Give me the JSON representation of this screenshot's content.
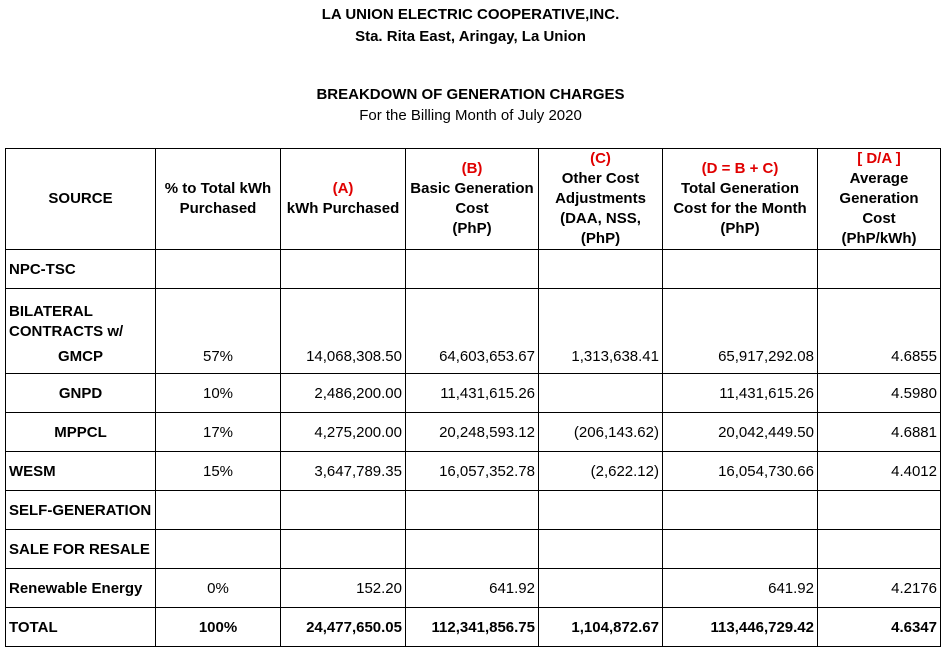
{
  "header": {
    "org": "LA UNION ELECTRIC COOPERATIVE,INC.",
    "address": "Sta. Rita East, Aringay, La Union",
    "title": "BREAKDOWN OF GENERATION CHARGES",
    "subtitle": "For the Billing Month of July 2020"
  },
  "table": {
    "columns": [
      {
        "label": "SOURCE"
      },
      {
        "label": "% to Total kWh Purchased"
      },
      {
        "code": "(A)",
        "label": "kWh Purchased"
      },
      {
        "code": "(B)",
        "label": "Basic Generation Cost",
        "unit": "(PhP)"
      },
      {
        "code": "(C)",
        "label": "Other Cost Adjustments (DAA, NSS,",
        "unit": "(PhP)"
      },
      {
        "code": "(D = B + C)",
        "label": "Total Generation Cost for the Month",
        "unit": "(PhP)"
      },
      {
        "code": "[ D/A ]",
        "label": "Average Generation Cost",
        "unit": "(PhP/kWh)"
      }
    ],
    "rows": [
      {
        "source": "NPC-TSC",
        "cells": [
          null,
          null,
          null,
          null,
          null,
          null
        ]
      },
      {
        "source": "BILATERAL CONTRACTS w/",
        "items": [
          {
            "source": "GMCP",
            "cells": [
              "57%",
              "14,068,308.50",
              "64,603,653.67",
              "1,313,638.41",
              "65,917,292.08",
              "4.6855"
            ]
          },
          {
            "source": "GNPD",
            "cells": [
              "10%",
              "2,486,200.00",
              "11,431,615.26",
              null,
              "11,431,615.26",
              "4.5980"
            ]
          },
          {
            "source": "MPPCL",
            "cells": [
              "17%",
              "4,275,200.00",
              "20,248,593.12",
              "(206,143.62)",
              "20,042,449.50",
              "4.6881"
            ]
          }
        ]
      },
      {
        "source": "WESM",
        "cells": [
          "15%",
          "3,647,789.35",
          "16,057,352.78",
          "(2,622.12)",
          "16,054,730.66",
          "4.4012"
        ]
      },
      {
        "source": "SELF-GENERATION",
        "cells": [
          null,
          null,
          null,
          null,
          null,
          null
        ]
      },
      {
        "source": "SALE FOR RESALE",
        "cells": [
          null,
          null,
          null,
          null,
          null,
          null
        ]
      },
      {
        "source": "Renewable Energy",
        "cells": [
          "0%",
          "152.20",
          "641.92",
          null,
          "641.92",
          "4.2176"
        ]
      }
    ],
    "total": {
      "source": "TOTAL",
      "cells": [
        "100%",
        "24,477,650.05",
        "112,341,856.75",
        "1,104,872.67",
        "113,446,729.42",
        "4.6347"
      ]
    }
  }
}
